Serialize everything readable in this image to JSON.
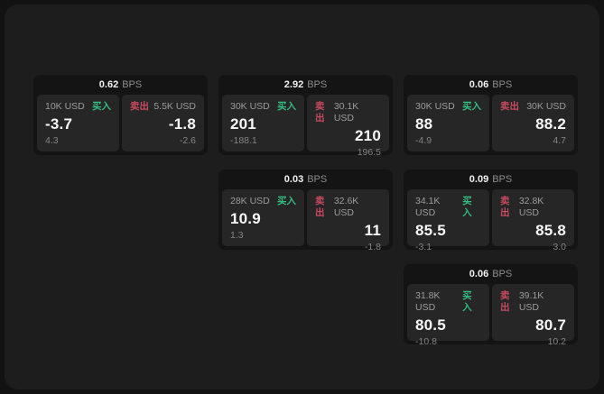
{
  "labels": {
    "bps_unit": "BPS",
    "buy": "买入",
    "sell": "卖出"
  },
  "colors": {
    "buy": "#33bd7f",
    "sell": "#c94a5e"
  },
  "cards": [
    {
      "bps": "0.62",
      "buy": {
        "notional": "10K USD",
        "value": "-3.7",
        "sub": "4.3"
      },
      "sell": {
        "notional": "5.5K USD",
        "value": "-1.8",
        "sub": "-2.6"
      }
    },
    {
      "bps": "2.92",
      "buy": {
        "notional": "30K USD",
        "value": "201",
        "sub": "-188.1"
      },
      "sell": {
        "notional": "30.1K USD",
        "value": "210",
        "sub": "196.5"
      }
    },
    {
      "bps": "0.06",
      "buy": {
        "notional": "30K USD",
        "value": "88",
        "sub": "-4.9"
      },
      "sell": {
        "notional": "30K USD",
        "value": "88.2",
        "sub": "4.7"
      }
    },
    {
      "bps": "0.03",
      "buy": {
        "notional": "28K USD",
        "value": "10.9",
        "sub": "1.3"
      },
      "sell": {
        "notional": "32.6K USD",
        "value": "11",
        "sub": "-1.8"
      }
    },
    {
      "bps": "0.09",
      "buy": {
        "notional": "34.1K USD",
        "value": "85.5",
        "sub": "-3.1"
      },
      "sell": {
        "notional": "32.8K USD",
        "value": "85.8",
        "sub": "3.0"
      }
    },
    {
      "bps": "0.06",
      "buy": {
        "notional": "31.8K USD",
        "value": "80.5",
        "sub": "-10.8"
      },
      "sell": {
        "notional": "39.1K USD",
        "value": "80.7",
        "sub": "10.2"
      }
    }
  ]
}
